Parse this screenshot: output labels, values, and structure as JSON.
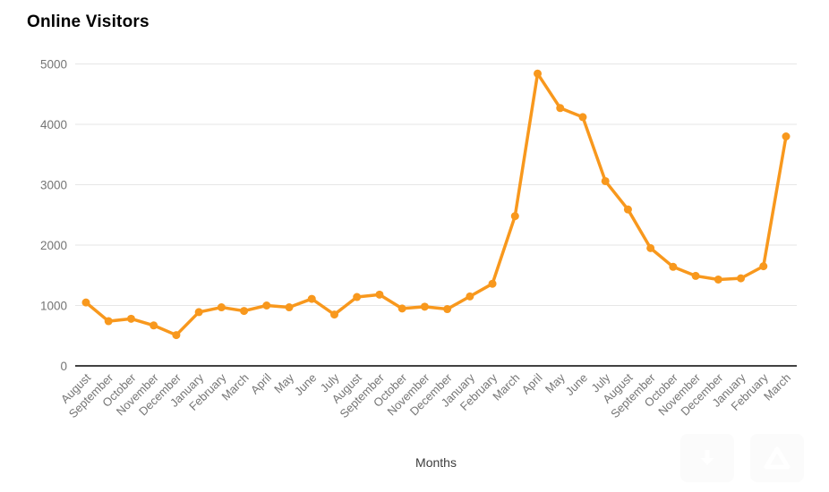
{
  "chart": {
    "title": "Online Visitors"
  },
  "chart_data": {
    "type": "line",
    "title": "Online Visitors",
    "xlabel": "Months",
    "ylabel": "",
    "categories": [
      "August",
      "September",
      "October",
      "November",
      "December",
      "January",
      "February",
      "March",
      "April",
      "May",
      "June",
      "July",
      "August",
      "September",
      "October",
      "November",
      "December",
      "January",
      "February",
      "March",
      "April",
      "May",
      "June",
      "July",
      "August",
      "September",
      "October",
      "November",
      "December",
      "January",
      "February",
      "March"
    ],
    "series": [
      {
        "name": "Online Visitors",
        "values": [
          1050,
          740,
          780,
          670,
          510,
          890,
          970,
          910,
          1000,
          970,
          1110,
          850,
          1140,
          1180,
          950,
          980,
          940,
          1150,
          1360,
          2480,
          4840,
          4270,
          4120,
          3060,
          2590,
          1950,
          1640,
          1490,
          1430,
          1450,
          1650,
          3800
        ]
      }
    ],
    "ylim": [
      0,
      5000
    ],
    "y_ticks": [
      0,
      1000,
      2000,
      3000,
      4000,
      5000
    ],
    "grid": true,
    "legend": "none",
    "marker": "circle"
  },
  "colors": {
    "line": "#F8981D",
    "grid": "#E6E6E6",
    "axis": "#424242",
    "tick_label": "#757575",
    "axis_title": "#3c3c3c",
    "title": "#000000"
  },
  "icons": {
    "download_watermark": "download-icon",
    "drive_watermark": "drive-triangle-icon"
  }
}
